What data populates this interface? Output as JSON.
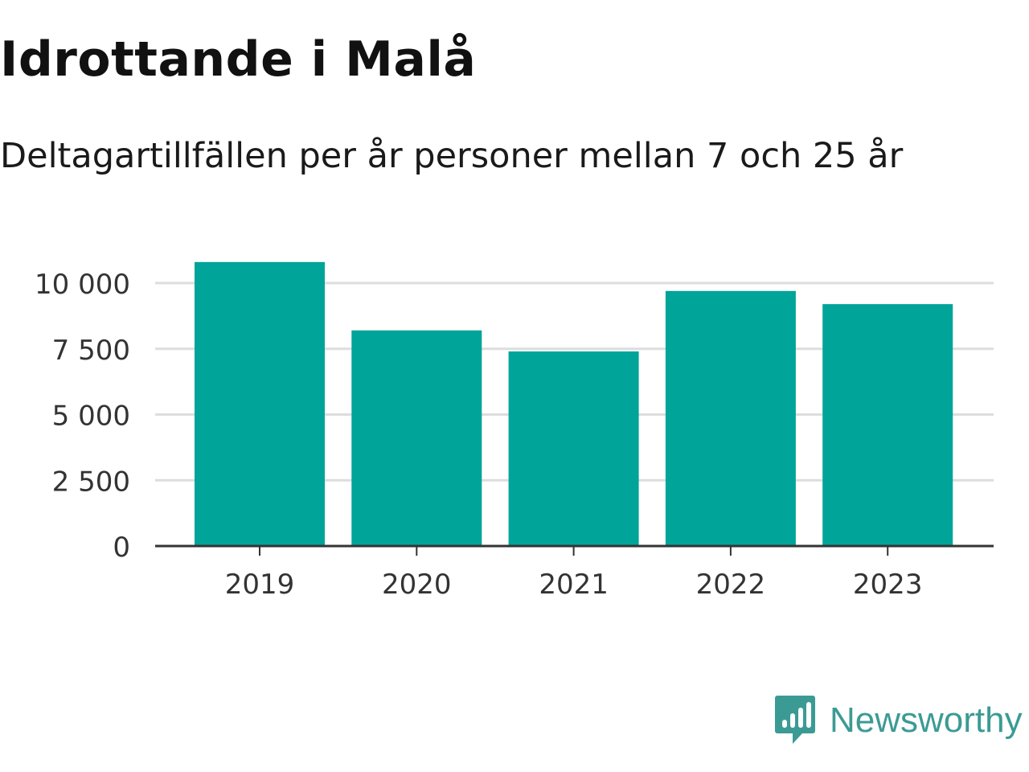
{
  "chart_data": {
    "type": "bar",
    "title": "Idrottande i Malå",
    "subtitle": "Deltagartillfällen per år personer mellan 7 och 25 år",
    "xlabel": "",
    "ylabel": "",
    "categories": [
      "2019",
      "2020",
      "2021",
      "2022",
      "2023"
    ],
    "values": [
      10800,
      8200,
      7400,
      9700,
      9200
    ],
    "ylim": [
      0,
      11000
    ],
    "yticks": [
      0,
      2500,
      5000,
      7500,
      10000
    ],
    "ytick_labels": [
      "0",
      "2 500",
      "5 000",
      "7 500",
      "10 000"
    ],
    "grid": true,
    "legend": "none",
    "bar_color": "#00a499"
  },
  "branding": {
    "logo_text": "Newsworthy",
    "logo_icon": "newsworthy-chart-bubble-icon",
    "logo_color": "#3b9b94"
  }
}
